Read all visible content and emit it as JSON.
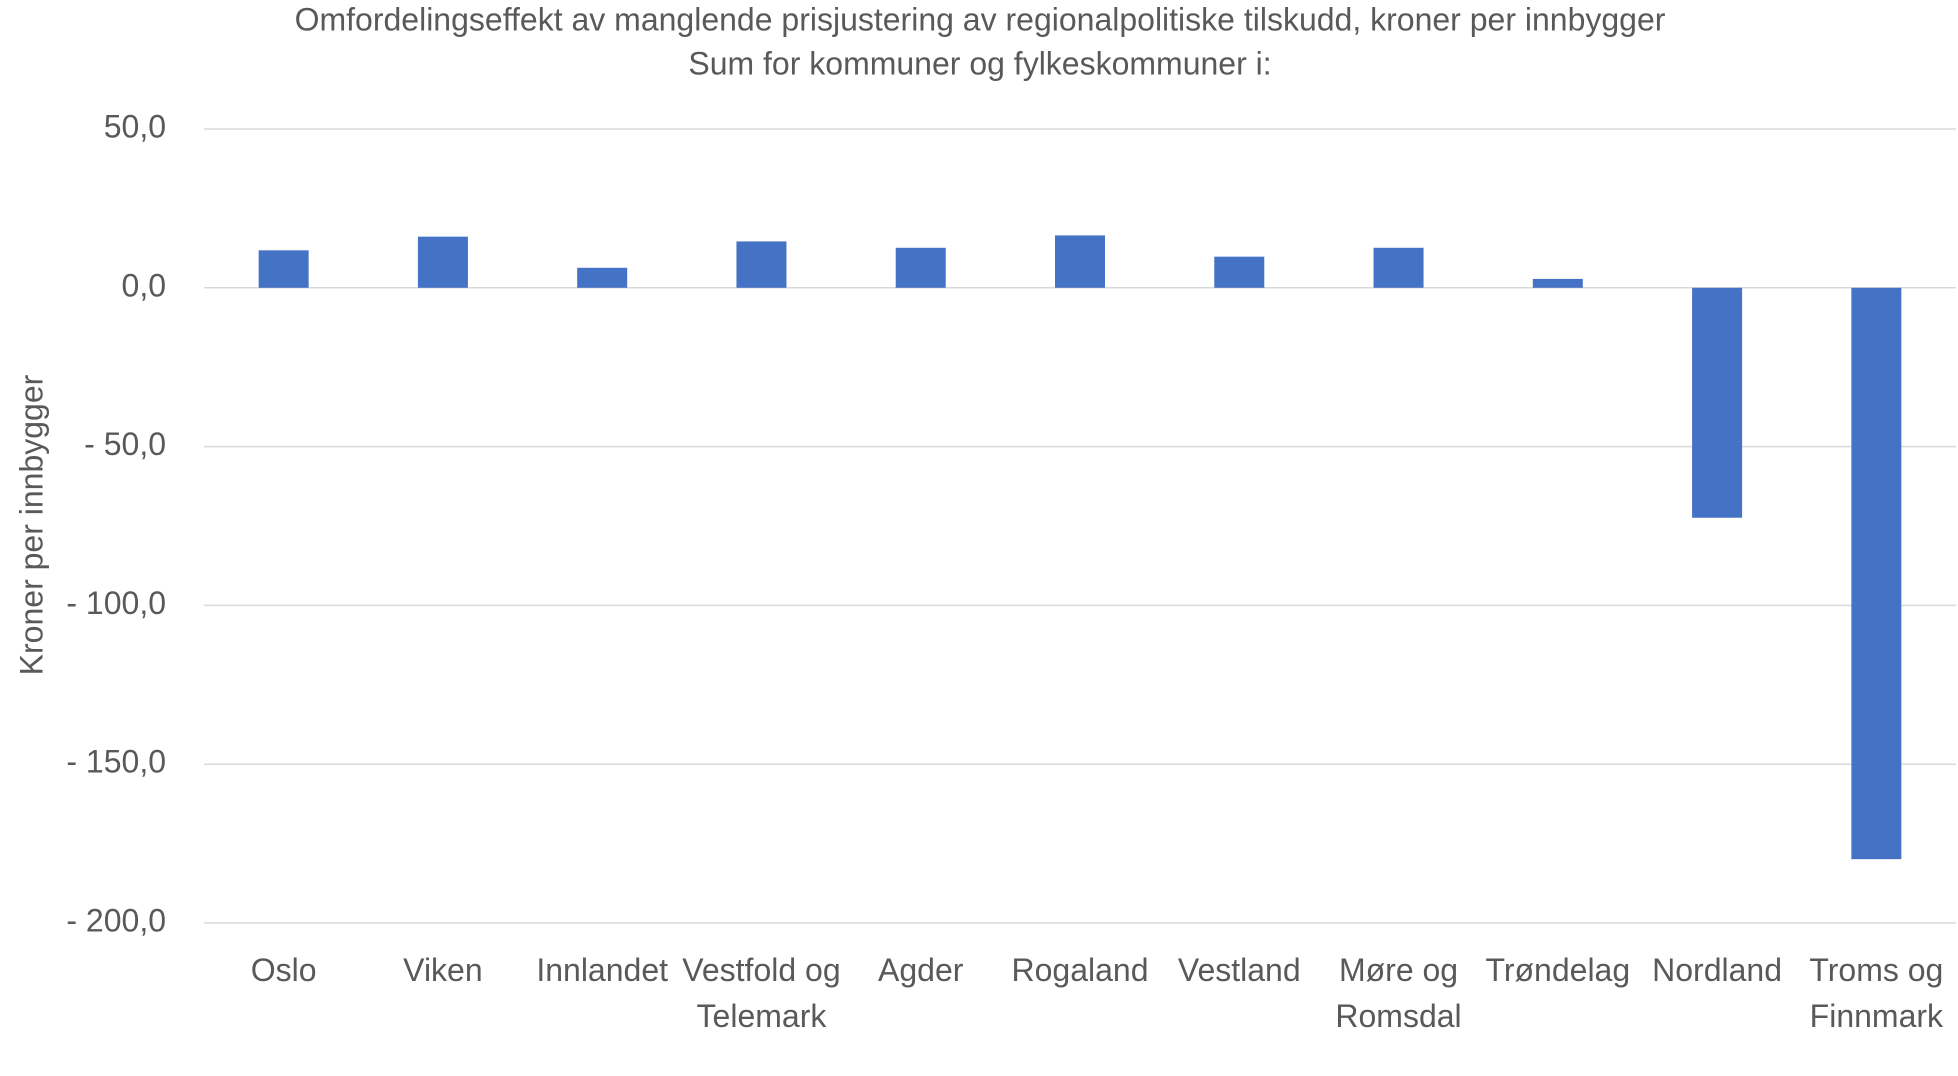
{
  "chart_data": {
    "type": "bar",
    "title": "Omfordelingseffekt av manglende prisjustering av regionalpolitiske tilskudd, kroner per innbygger",
    "subtitle": "Sum for kommuner og fylkeskommuner i:",
    "y_label": "Kroner per innbygger",
    "categories": [
      "Oslo",
      "Viken",
      "Innlandet",
      "Vestfold og Telemark",
      "Agder",
      "Rogaland",
      "Vestland",
      "Møre og Romsdal",
      "Trøndelag",
      "Nordland",
      "Troms og Finnmark"
    ],
    "values": [
      11.8,
      16.1,
      6.3,
      14.6,
      12.6,
      16.5,
      9.8,
      12.6,
      2.8,
      -72.4,
      -179.9
    ],
    "color": "#4472c4",
    "ylim": [
      -200,
      50
    ],
    "yticks": [
      {
        "value": -200,
        "label": "- 200,0"
      },
      {
        "value": -150,
        "label": "- 150,0"
      },
      {
        "value": -100,
        "label": "- 100,0"
      },
      {
        "value": -50,
        "label": "- 50,0"
      },
      {
        "value": 0,
        "label": "0,0"
      },
      {
        "value": 50,
        "label": "50,0"
      }
    ],
    "grid": true
  }
}
